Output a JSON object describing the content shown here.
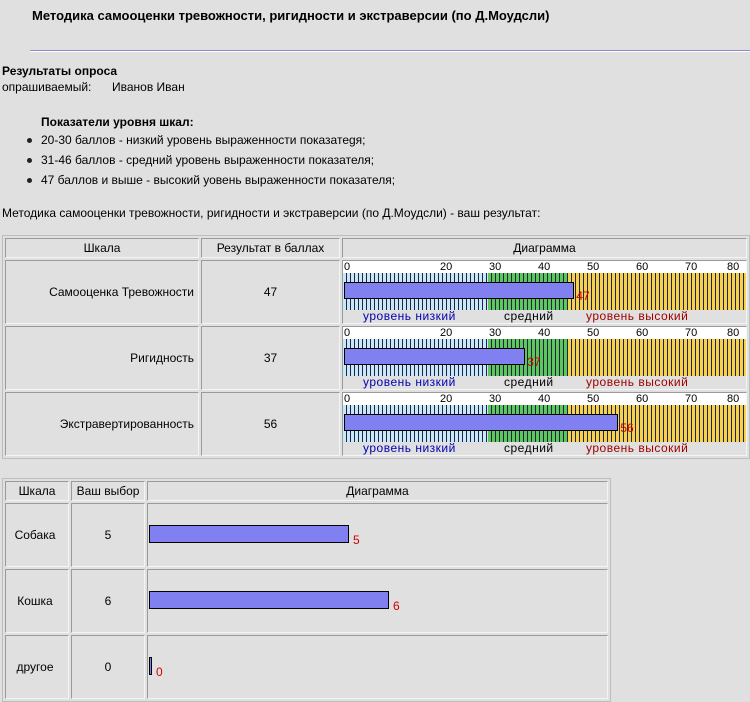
{
  "title": "Методика самооценки тревожности, ригидности и экстраверсии   (по Д.Моудсли)",
  "results_title": "Результаты опроса",
  "respondent_label": "опрашиваемый:",
  "respondent_name": "Иванов Иван",
  "legend": {
    "heading": "Показатели уровня шкал:",
    "items": [
      "20-30 баллов - низкий уровень выраженности показатеgя;",
      "31-46 баллов - средний уровень выраженности показателя;",
      "47 баллов и выше - высокий уовень выраженности показателя;"
    ]
  },
  "method_line": "Методика самооценки тревожности, ригидности и экстраверсии (по Д.Моудсли) - ваш результат:",
  "table1": {
    "headers": [
      "Шкала",
      "Результат в баллах",
      "Диаграмма"
    ],
    "axis_ticks": [
      "0",
      "20",
      "30",
      "40",
      "50",
      "60",
      "70",
      "80"
    ],
    "zone_labels": [
      "уровень низкий",
      "средний",
      "уровень высокий"
    ],
    "rows": [
      {
        "scale": "Самооценка Тревожности",
        "score": "47",
        "value": 47
      },
      {
        "scale": "Ригидность",
        "score": "37",
        "value": 37
      },
      {
        "scale": "Экстравертированность",
        "score": "56",
        "value": 56
      }
    ]
  },
  "table2": {
    "headers": [
      "Шкала",
      "Ваш выбор",
      "Диаграмма"
    ],
    "rows": [
      {
        "scale": "Собака",
        "score": "5",
        "value": 5
      },
      {
        "scale": "Кошка",
        "score": "6",
        "value": 6
      },
      {
        "scale": "другое",
        "score": "0",
        "value": 0
      }
    ]
  },
  "colors": {
    "bar": "#8080f0",
    "value_text": "#d00000",
    "zone_low": "#c8e8f8",
    "zone_mid": "#5cc85c",
    "zone_high": "#f5d24a"
  }
}
